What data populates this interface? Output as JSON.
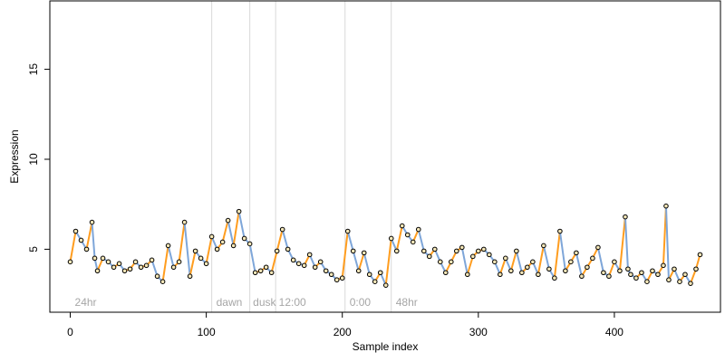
{
  "chart_data": {
    "type": "scatter",
    "title": "",
    "xlabel": "Sample index",
    "ylabel": "Expression",
    "xlim": [
      -15,
      478
    ],
    "ylim": [
      1.5,
      18.8
    ],
    "x_ticks": [
      0,
      100,
      200,
      300,
      400
    ],
    "y_ticks": [
      5,
      10,
      15
    ],
    "grid": false,
    "section_boundaries": [
      104,
      132,
      151,
      202,
      236
    ],
    "sections": [
      {
        "label": "24hr",
        "x": 2
      },
      {
        "label": "dawn",
        "x": 106
      },
      {
        "label": "dusk",
        "x": 133
      },
      {
        "label": "12:00",
        "x": 152
      },
      {
        "label": "0:00",
        "x": 204
      },
      {
        "label": "48hr",
        "x": 238
      }
    ],
    "points": {
      "x": [
        0,
        4,
        8,
        12,
        16,
        18,
        20,
        24,
        28,
        32,
        36,
        40,
        44,
        48,
        52,
        56,
        60,
        64,
        68,
        72,
        76,
        80,
        84,
        88,
        92,
        96,
        100,
        104,
        108,
        112,
        116,
        120,
        124,
        128,
        132,
        136,
        140,
        144,
        148,
        152,
        156,
        160,
        164,
        168,
        172,
        176,
        180,
        184,
        188,
        192,
        196,
        200,
        204,
        208,
        212,
        216,
        220,
        224,
        228,
        232,
        236,
        240,
        244,
        248,
        252,
        256,
        260,
        264,
        268,
        272,
        276,
        280,
        284,
        288,
        292,
        296,
        300,
        304,
        308,
        312,
        316,
        320,
        324,
        328,
        332,
        336,
        340,
        344,
        348,
        352,
        356,
        360,
        364,
        368,
        372,
        376,
        380,
        384,
        388,
        392,
        396,
        400,
        404,
        408,
        410,
        412,
        416,
        420,
        424,
        428,
        432,
        436,
        438,
        440,
        444,
        448,
        452,
        456,
        460,
        463
      ],
      "y": [
        4.3,
        6.0,
        5.5,
        5.0,
        6.5,
        4.5,
        3.8,
        4.5,
        4.3,
        4.0,
        4.2,
        3.8,
        3.9,
        4.3,
        4.0,
        4.1,
        4.4,
        3.5,
        3.2,
        5.2,
        4.0,
        4.3,
        6.5,
        3.5,
        4.9,
        4.5,
        4.2,
        5.7,
        5.0,
        5.4,
        6.6,
        5.2,
        7.1,
        5.6,
        5.3,
        3.7,
        3.8,
        4.0,
        3.7,
        4.9,
        6.1,
        5.0,
        4.4,
        4.2,
        4.1,
        4.7,
        4.0,
        4.3,
        3.8,
        3.6,
        3.3,
        3.4,
        6.0,
        4.9,
        3.8,
        4.8,
        3.6,
        3.2,
        3.7,
        3.0,
        5.6,
        4.9,
        6.3,
        5.8,
        5.4,
        6.1,
        4.9,
        4.6,
        5.0,
        4.3,
        3.7,
        4.3,
        4.9,
        5.1,
        3.6,
        4.6,
        4.9,
        5.0,
        4.7,
        4.3,
        3.6,
        4.5,
        3.8,
        4.9,
        3.7,
        4.0,
        4.3,
        3.6,
        5.2,
        3.9,
        3.4,
        6.0,
        3.8,
        4.3,
        4.8,
        3.5,
        4.0,
        4.5,
        5.1,
        3.7,
        3.5,
        4.3,
        3.8,
        6.8,
        3.9,
        3.6,
        3.4,
        3.7,
        3.2,
        3.8,
        3.6,
        4.1,
        7.4,
        3.3,
        3.9,
        3.2,
        3.6,
        3.1,
        3.9,
        4.7
      ]
    },
    "series": [
      {
        "color": "#ff9d1f"
      },
      {
        "color": "#7ea6d9"
      }
    ],
    "point_fill_color": "#f3e6b8"
  }
}
